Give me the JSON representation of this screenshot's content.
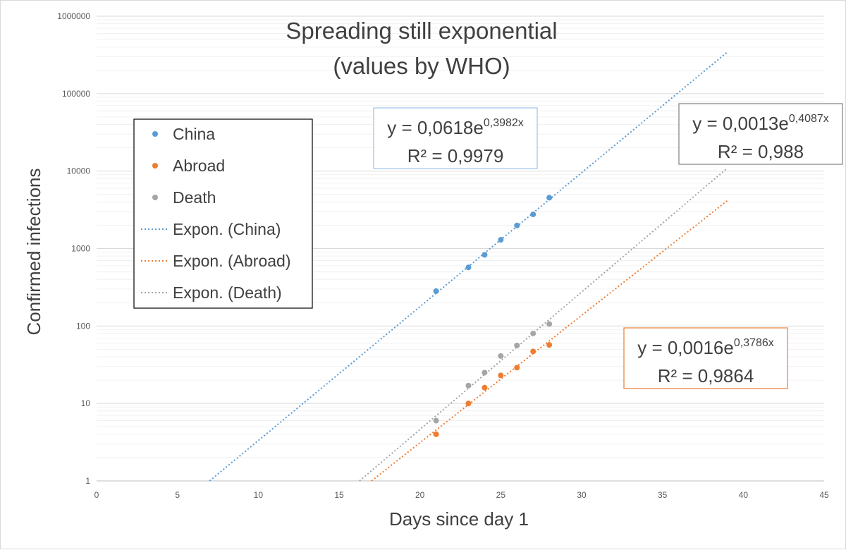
{
  "chart_data": {
    "type": "scatter",
    "title": [
      "Spreading still exponential",
      "(values by WHO)"
    ],
    "xlabel": "Days since day 1",
    "ylabel": "Confirmed infections",
    "xlim": [
      0,
      45
    ],
    "x_ticks": [
      0,
      5,
      10,
      15,
      20,
      25,
      30,
      35,
      40,
      45
    ],
    "ylim": [
      1,
      1000000
    ],
    "yscale": "log",
    "y_ticks": [
      1,
      10,
      100,
      1000,
      10000,
      100000,
      1000000
    ],
    "grid": true,
    "legend_position": "left",
    "series": [
      {
        "name": "China",
        "color": "#5b9bd5",
        "x": [
          21,
          23,
          24,
          25,
          26,
          27,
          28
        ],
        "y": [
          282,
          571,
          830,
          1297,
          1985,
          2761,
          4537
        ]
      },
      {
        "name": "Abroad",
        "color": "#ed7d31",
        "x": [
          21,
          23,
          24,
          25,
          26,
          27,
          28
        ],
        "y": [
          4,
          10,
          16,
          23,
          29,
          47,
          57
        ]
      },
      {
        "name": "Death",
        "color": "#a5a5a5",
        "x": [
          21,
          23,
          24,
          25,
          26,
          27,
          28
        ],
        "y": [
          6,
          17,
          25,
          41,
          56,
          80,
          106
        ]
      }
    ],
    "trendlines": [
      {
        "name": "Expon. (China)",
        "color": "#5b9bd5",
        "a": 0.0618,
        "b": 0.3982,
        "x_end": 39,
        "eq_prefix": "y = 0,0618e",
        "eq_exp": "0,3982x",
        "r2": "R² = 0,9979",
        "box_border": "#9dc3e6"
      },
      {
        "name": "Expon. (Abroad)",
        "color": "#ed7d31",
        "a": 0.0016,
        "b": 0.3786,
        "x_end": 39,
        "eq_prefix": "y = 0,0016e",
        "eq_exp": "0,3786x",
        "r2": "R² = 0,9864",
        "box_border": "#ed7d31"
      },
      {
        "name": "Expon. (Death)",
        "color": "#a5a5a5",
        "a": 0.0013,
        "b": 0.4087,
        "x_end": 39,
        "eq_prefix": "y = 0,0013e",
        "eq_exp": "0,4087x",
        "r2": "R² = 0,988",
        "box_border": "#7f7f7f"
      }
    ]
  }
}
